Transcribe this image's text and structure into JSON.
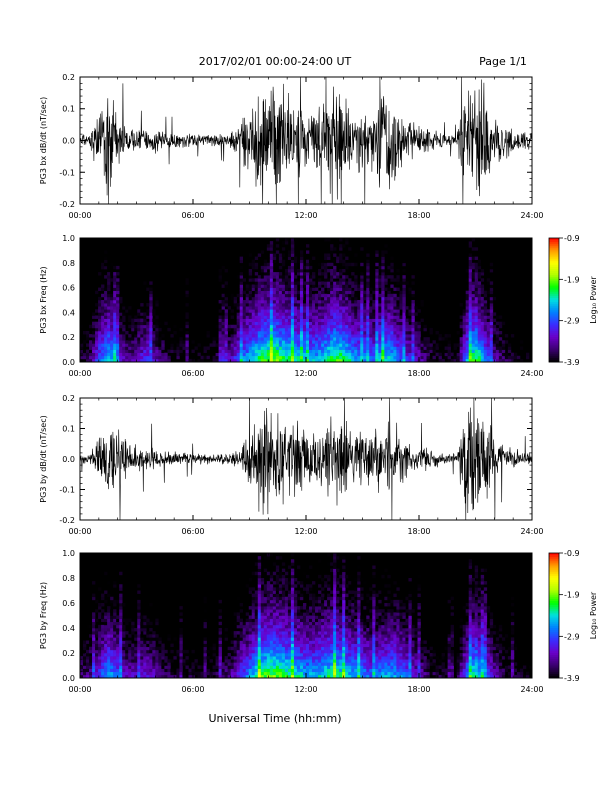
{
  "header": {
    "title": "2017/02/01  00:00-24:00 UT",
    "page": "Page 1/1"
  },
  "footer": {
    "xlabel": "Universal Time (hh:mm)"
  },
  "colorbar": {
    "label": "Log₁₀ Power",
    "ticks": [
      "-0.9",
      "-1.9",
      "-2.9",
      "-3.9"
    ],
    "range": [
      -3.9,
      -0.9
    ],
    "colors": [
      "#000000",
      "#3b0070",
      "#6a00c8",
      "#3a2cff",
      "#0080ff",
      "#00e0e0",
      "#00ff00",
      "#b0ff00",
      "#ffff00",
      "#ff9900",
      "#ff0000"
    ]
  },
  "chart_data": [
    {
      "type": "line",
      "ylabel": "PG3 bx dB/dt (nT/sec)",
      "xticks": [
        "00:00",
        "06:00",
        "12:00",
        "18:00",
        "24:00"
      ],
      "yticks": [
        "0.2",
        "0.1",
        "0.0",
        "-0.1",
        "-0.2"
      ],
      "xlim": [
        0,
        24
      ],
      "ylim": [
        -0.2,
        0.2
      ],
      "series": [
        {
          "x": [
            0,
            0.5,
            1,
            1.5,
            2,
            2.5,
            3,
            3.5,
            4,
            4.5,
            5,
            5.5,
            6,
            6.5,
            7,
            7.5,
            8,
            8.5,
            9,
            9.5,
            10,
            10.5,
            11,
            11.5,
            12,
            12.5,
            13,
            13.5,
            14,
            14.5,
            15,
            15.5,
            16,
            16.5,
            17,
            17.5,
            18,
            18.5,
            19,
            19.5,
            20,
            20.5,
            21,
            21.5,
            22,
            22.5,
            23,
            23.5,
            24
          ],
          "amplitude": [
            0.015,
            0.03,
            0.12,
            0.2,
            0.1,
            0.05,
            0.04,
            0.035,
            0.05,
            0.03,
            0.03,
            0.025,
            0.02,
            0.02,
            0.02,
            0.025,
            0.03,
            0.06,
            0.15,
            0.2,
            0.2,
            0.2,
            0.18,
            0.15,
            0.12,
            0.12,
            0.15,
            0.2,
            0.17,
            0.12,
            0.12,
            0.1,
            0.18,
            0.2,
            0.1,
            0.07,
            0.06,
            0.04,
            0.03,
            0.02,
            0.02,
            0.2,
            0.2,
            0.2,
            0.1,
            0.07,
            0.04,
            0.03,
            0.03
          ]
        }
      ]
    },
    {
      "type": "heatmap",
      "ylabel": "PG3 bx Freq (Hz)",
      "xticks": [
        "00:00",
        "06:00",
        "12:00",
        "18:00",
        "24:00"
      ],
      "yticks": [
        "1.0",
        "0.8",
        "0.6",
        "0.4",
        "0.2",
        "0.0"
      ],
      "xlim": [
        0,
        24
      ],
      "ylim": [
        0,
        1.0
      ],
      "activity": [
        0.15,
        0.2,
        0.45,
        0.6,
        0.4,
        0.25,
        0.3,
        0.4,
        0.3,
        0.2,
        0.15,
        0.15,
        0.12,
        0.12,
        0.15,
        0.2,
        0.3,
        0.45,
        0.55,
        0.65,
        0.7,
        0.7,
        0.65,
        0.6,
        0.55,
        0.55,
        0.6,
        0.7,
        0.65,
        0.55,
        0.5,
        0.45,
        0.55,
        0.6,
        0.45,
        0.35,
        0.3,
        0.2,
        0.15,
        0.15,
        0.12,
        0.5,
        0.7,
        0.5,
        0.3,
        0.2,
        0.15,
        0.12,
        0.1
      ]
    },
    {
      "type": "line",
      "ylabel": "PG3 by dB/dt (nT/sec)",
      "xticks": [
        "00:00",
        "06:00",
        "12:00",
        "18:00",
        "24:00"
      ],
      "yticks": [
        "0.2",
        "0.1",
        "0.0",
        "-0.1",
        "-0.2"
      ],
      "xlim": [
        0,
        24
      ],
      "ylim": [
        -0.2,
        0.2
      ],
      "series": [
        {
          "x": [
            0,
            0.5,
            1,
            1.5,
            2,
            2.5,
            3,
            3.5,
            4,
            4.5,
            5,
            5.5,
            6,
            6.5,
            7,
            7.5,
            8,
            8.5,
            9,
            9.5,
            10,
            10.5,
            11,
            11.5,
            12,
            12.5,
            13,
            13.5,
            14,
            14.5,
            15,
            15.5,
            16,
            16.5,
            17,
            17.5,
            18,
            18.5,
            19,
            19.5,
            20,
            20.5,
            21,
            21.5,
            22,
            22.5,
            23,
            23.5,
            24
          ],
          "amplitude": [
            0.015,
            0.02,
            0.08,
            0.15,
            0.12,
            0.07,
            0.05,
            0.04,
            0.05,
            0.03,
            0.03,
            0.025,
            0.02,
            0.02,
            0.02,
            0.02,
            0.025,
            0.04,
            0.1,
            0.2,
            0.2,
            0.17,
            0.15,
            0.15,
            0.12,
            0.12,
            0.15,
            0.18,
            0.16,
            0.12,
            0.12,
            0.1,
            0.13,
            0.15,
            0.11,
            0.06,
            0.05,
            0.04,
            0.03,
            0.02,
            0.02,
            0.2,
            0.2,
            0.2,
            0.08,
            0.05,
            0.04,
            0.03,
            0.03
          ]
        }
      ]
    },
    {
      "type": "heatmap",
      "ylabel": "PG3 by Freq (Hz)",
      "xticks": [
        "00:00",
        "06:00",
        "12:00",
        "18:00",
        "24:00"
      ],
      "yticks": [
        "1.0",
        "0.8",
        "0.6",
        "0.4",
        "0.2",
        "0.0"
      ],
      "xlim": [
        0,
        24
      ],
      "ylim": [
        0,
        1.0
      ],
      "activity": [
        0.2,
        0.25,
        0.4,
        0.55,
        0.45,
        0.3,
        0.3,
        0.35,
        0.3,
        0.2,
        0.18,
        0.15,
        0.15,
        0.12,
        0.15,
        0.2,
        0.25,
        0.4,
        0.5,
        0.65,
        0.7,
        0.7,
        0.65,
        0.6,
        0.55,
        0.55,
        0.6,
        0.65,
        0.6,
        0.55,
        0.5,
        0.45,
        0.5,
        0.55,
        0.5,
        0.4,
        0.3,
        0.2,
        0.15,
        0.15,
        0.12,
        0.45,
        0.65,
        0.45,
        0.3,
        0.2,
        0.15,
        0.12,
        0.1
      ]
    }
  ]
}
